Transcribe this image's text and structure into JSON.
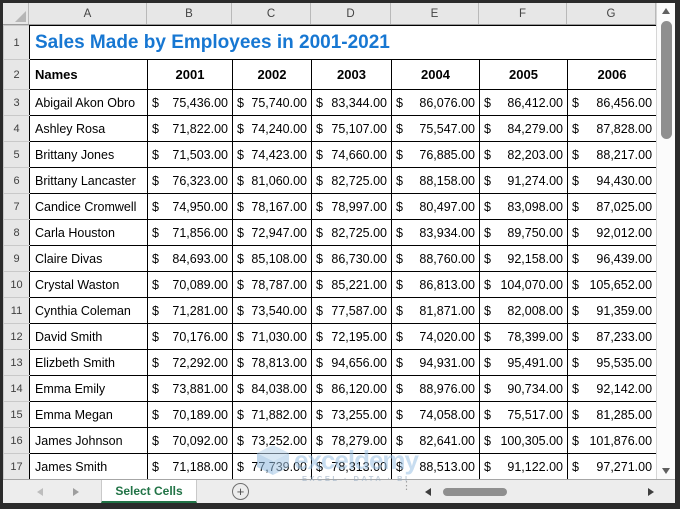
{
  "grid": {
    "column_headers": [
      "A",
      "B",
      "C",
      "D",
      "E",
      "F",
      "G"
    ],
    "row_numbers": [
      "1",
      "2",
      "3",
      "4",
      "5",
      "6",
      "7",
      "8",
      "9",
      "10",
      "11",
      "12",
      "13",
      "14",
      "15",
      "16",
      "17"
    ]
  },
  "title": "Sales Made by Employees in 2001-2021",
  "table": {
    "columns": [
      "Names",
      "2001",
      "2002",
      "2003",
      "2004",
      "2005",
      "2006"
    ],
    "currency_symbol": "$",
    "rows": [
      {
        "name": "Abigail Akon Obro",
        "values": [
          "75,436.00",
          "75,740.00",
          "83,344.00",
          "86,076.00",
          "86,412.00",
          "86,456.00"
        ]
      },
      {
        "name": "Ashley Rosa",
        "values": [
          "71,822.00",
          "74,240.00",
          "75,107.00",
          "75,547.00",
          "84,279.00",
          "87,828.00"
        ]
      },
      {
        "name": "Brittany Jones",
        "values": [
          "71,503.00",
          "74,423.00",
          "74,660.00",
          "76,885.00",
          "82,203.00",
          "88,217.00"
        ]
      },
      {
        "name": "Brittany Lancaster",
        "values": [
          "76,323.00",
          "81,060.00",
          "82,725.00",
          "88,158.00",
          "91,274.00",
          "94,430.00"
        ]
      },
      {
        "name": "Candice Cromwell",
        "values": [
          "74,950.00",
          "78,167.00",
          "78,997.00",
          "80,497.00",
          "83,098.00",
          "87,025.00"
        ]
      },
      {
        "name": "Carla Houston",
        "values": [
          "71,856.00",
          "72,947.00",
          "82,725.00",
          "83,934.00",
          "89,750.00",
          "92,012.00"
        ]
      },
      {
        "name": "Claire Divas",
        "values": [
          "84,693.00",
          "85,108.00",
          "86,730.00",
          "88,760.00",
          "92,158.00",
          "96,439.00"
        ]
      },
      {
        "name": "Crystal Waston",
        "values": [
          "70,089.00",
          "78,787.00",
          "85,221.00",
          "86,813.00",
          "104,070.00",
          "105,652.00"
        ]
      },
      {
        "name": "Cynthia Coleman",
        "values": [
          "71,281.00",
          "73,540.00",
          "77,587.00",
          "81,871.00",
          "82,008.00",
          "91,359.00"
        ]
      },
      {
        "name": "David Smith",
        "values": [
          "70,176.00",
          "71,030.00",
          "72,195.00",
          "74,020.00",
          "78,399.00",
          "87,233.00"
        ]
      },
      {
        "name": "Elizbeth Smith",
        "values": [
          "72,292.00",
          "78,813.00",
          "94,656.00",
          "94,931.00",
          "95,491.00",
          "95,535.00"
        ]
      },
      {
        "name": "Emma Emily",
        "values": [
          "73,881.00",
          "84,038.00",
          "86,120.00",
          "88,976.00",
          "90,734.00",
          "92,142.00"
        ]
      },
      {
        "name": "Emma Megan",
        "values": [
          "70,189.00",
          "71,882.00",
          "73,255.00",
          "74,058.00",
          "75,517.00",
          "81,285.00"
        ]
      },
      {
        "name": "James Johnson",
        "values": [
          "70,092.00",
          "73,252.00",
          "78,279.00",
          "82,641.00",
          "100,305.00",
          "101,876.00"
        ]
      },
      {
        "name": "James Smith",
        "values": [
          "71,188.00",
          "77,739.00",
          "78,313.00",
          "88,513.00",
          "91,122.00",
          "97,271.00"
        ]
      }
    ]
  },
  "tab_bar": {
    "active_tab": "Select Cells",
    "add_sheet_symbol": "+"
  },
  "watermark": {
    "brand": "exceldemy",
    "tagline": "EXCEL · DATA · BI"
  },
  "colors": {
    "title_blue": "#1777D2",
    "tab_green": "#217346",
    "header_bg": "#E7E7E7",
    "frame": "#2B2B2B"
  }
}
